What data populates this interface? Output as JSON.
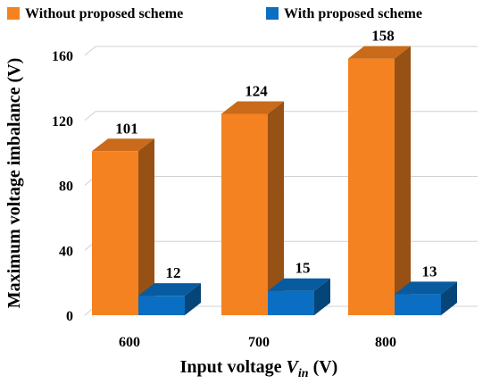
{
  "chart_data": {
    "type": "bar",
    "style": "3d-clustered",
    "categories": [
      "600",
      "700",
      "800"
    ],
    "series": [
      {
        "name": "Without proposed scheme",
        "values": [
          101,
          124,
          158
        ],
        "color": "#F58220"
      },
      {
        "name": "With proposed scheme",
        "values": [
          12,
          15,
          13
        ],
        "color": "#0A6FC2"
      }
    ],
    "data_labels": [
      [
        "101",
        "124",
        "158"
      ],
      [
        "12",
        "15",
        "13"
      ]
    ],
    "xlabel": {
      "prefix": "Input voltage ",
      "var": "V",
      "sub": "in",
      "suffix": " (V)"
    },
    "ylabel": "Maximum voltage imbalance (V)",
    "ylim": [
      0,
      160
    ],
    "yticks": [
      0,
      40,
      80,
      120,
      160
    ],
    "grid": true,
    "legend_position": "top-left"
  }
}
